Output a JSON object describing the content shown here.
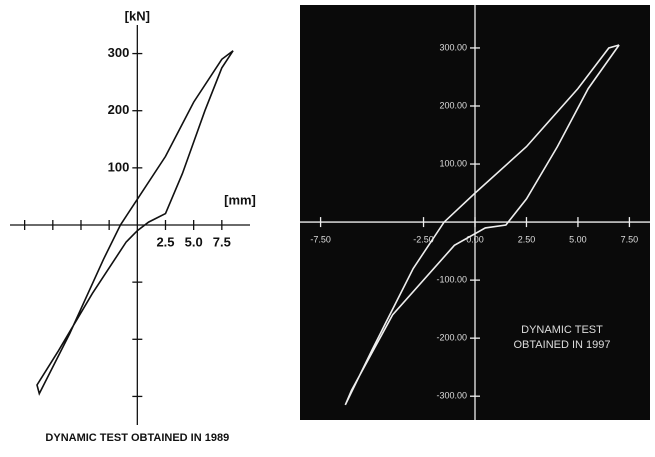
{
  "chart_data": [
    {
      "type": "line",
      "title": "DYNAMIC TEST OBTAINED IN 1989",
      "x_label": "[mm]",
      "y_label": "[kN]",
      "color": "#111111",
      "background": "#ffffff",
      "x": [
        8.5,
        7.5,
        5,
        2.5,
        0,
        -1.5,
        -3,
        -6,
        -8.7,
        -8.9,
        -7,
        -4,
        -1,
        0,
        1,
        2.5,
        4,
        6,
        7.5,
        8.5
      ],
      "values": [
        305,
        290,
        215,
        120,
        45,
        0,
        -60,
        -190,
        -295,
        -280,
        -220,
        -120,
        -30,
        -10,
        5,
        20,
        90,
        200,
        275,
        305
      ],
      "xlim": [
        -11.3,
        10
      ],
      "ylim": [
        -350,
        350
      ],
      "xticks": [
        {
          "value": -10,
          "label": null
        },
        {
          "value": -7.5,
          "label": null
        },
        {
          "value": -5,
          "label": null
        },
        {
          "value": -2.5,
          "label": null
        },
        2.5,
        {
          "value": 5,
          "label": "5.0"
        },
        7.5
      ],
      "yticks": [
        {
          "value": -300,
          "label": null
        },
        {
          "value": -200,
          "label": null
        },
        {
          "value": -100,
          "label": null
        },
        100,
        200,
        300
      ]
    },
    {
      "type": "line",
      "annotation": "DYNAMIC TEST OBTAINED IN 1997",
      "color": "#eeeeee",
      "background": "#0a0a0a",
      "x": [
        7.0,
        6.5,
        5,
        2.5,
        0,
        -1.5,
        -3,
        -5,
        -6.3,
        -6.0,
        -4,
        -1,
        0.5,
        1.5,
        2.5,
        4,
        5.5,
        7.0
      ],
      "values": [
        305,
        300,
        230,
        130,
        50,
        0,
        -80,
        -220,
        -315,
        -290,
        -160,
        -40,
        -10,
        -5,
        40,
        130,
        230,
        305
      ],
      "xlim": [
        -8.5,
        8.5
      ],
      "ylim": [
        -341,
        374
      ],
      "xticks": [
        {
          "value": -7.5,
          "label": "-7.50"
        },
        {
          "value": -2.5,
          "label": "-2.50"
        },
        {
          "value": 0,
          "label": "0.00"
        },
        {
          "value": 2.5,
          "label": "2.50"
        },
        {
          "value": 5,
          "label": "5.00"
        },
        {
          "value": 7.5,
          "label": "7.50"
        }
      ],
      "yticks": [
        {
          "value": -300,
          "label": "-300.00"
        },
        {
          "value": -200,
          "label": "-200.00"
        },
        {
          "value": -100,
          "label": "-100.00"
        },
        {
          "value": 100,
          "label": "100.00"
        },
        {
          "value": 200,
          "label": "200.00"
        },
        {
          "value": 300,
          "label": "300.00"
        }
      ]
    }
  ]
}
